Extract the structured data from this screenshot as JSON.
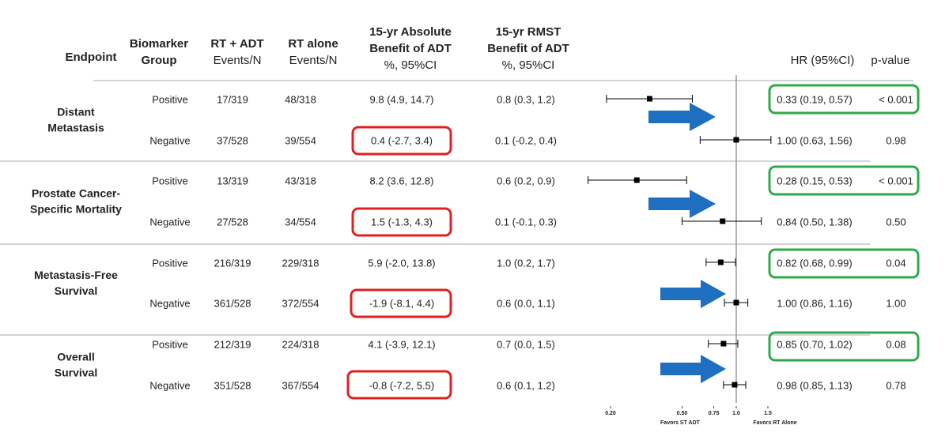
{
  "table": {
    "headers": {
      "endpoint": [
        "Endpoint"
      ],
      "biomarker": [
        "Biomarker",
        "Group"
      ],
      "rt_adt": [
        "RT + ADT",
        "Events/N"
      ],
      "rt_alone": [
        "RT alone",
        "Events/N"
      ],
      "absolute": [
        "15-yr Absolute",
        "Benefit of ADT",
        "%, 95%CI"
      ],
      "rmst": [
        "15-yr RMST",
        "Benefit of ADT",
        "%, 95%CI"
      ],
      "hr": [
        "HR (95%CI)"
      ],
      "p": [
        "p-value"
      ]
    },
    "groups": [
      [
        "Distant",
        "Metastasis"
      ],
      [
        "Prostate Cancer-",
        "Specific Mortality"
      ],
      [
        "Metastasis-Free",
        "Survival"
      ],
      [
        "Overall",
        "Survival"
      ]
    ],
    "rows": [
      [
        "Positive",
        "17/319",
        "48/318",
        "9.8 (4.9, 14.7)",
        "0.8 (0.3, 1.2)",
        "< 0.001"
      ],
      [
        "Negative",
        "37/528",
        "39/554",
        "0.4 (-2.7, 3.4)",
        "0.1 (-0.2, 0.4)",
        "0.98"
      ],
      [
        "Positive",
        "13/319",
        "43/318",
        "8.2 (3.6, 12.8)",
        "0.6 (0.2, 0.9)",
        "< 0.001"
      ],
      [
        "Negative",
        "27/528",
        "34/554",
        "1.5 (-1.3, 4.3)",
        "0.1 (-0.1, 0.3)",
        "0.50"
      ],
      [
        "Positive",
        "216/319",
        "229/318",
        "5.9 (-2.0, 13.8)",
        "1.0 (0.2, 1.7)",
        "0.04"
      ],
      [
        "Negative",
        "361/528",
        "372/554",
        "-1.9 (-8.1, 4.4)",
        "0.6 (0.0, 1.1)",
        "1.00"
      ],
      [
        "Positive",
        "212/319",
        "224/318",
        "4.1 (-3.9, 12.1)",
        "0.7 (0.0, 1.5)",
        "0.08"
      ],
      [
        "Negative",
        "351/528",
        "367/554",
        "-0.8 (-7.2, 5.5)",
        "0.6 (0.1, 1.2)",
        "0.78"
      ]
    ]
  },
  "chart_data": {
    "type": "forest",
    "values": [
      0.33,
      1.0,
      0.28,
      0.84,
      0.82,
      1.0,
      0.85,
      0.98
    ],
    "lower": [
      0.19,
      0.63,
      0.15,
      0.5,
      0.68,
      0.86,
      0.7,
      0.85
    ],
    "upper": [
      0.57,
      1.56,
      0.53,
      1.38,
      0.99,
      1.16,
      1.02,
      1.13
    ],
    "value_labels": [
      "0.33 (0.19, 0.57)",
      "1.00 (0.63, 1.56)",
      "0.28 (0.15, 0.53)",
      "0.84 (0.50, 1.38)",
      "0.82 (0.68, 0.99)",
      "1.00 (0.86, 1.16)",
      "0.85 (0.70, 1.02)",
      "0.98 (0.85, 1.13)"
    ],
    "xlim": [
      0.2,
      1.5
    ],
    "xticks": [
      {
        "value": 0.2,
        "label": "0.20"
      },
      {
        "value": 0.5,
        "label": "0.50"
      },
      0.75,
      {
        "value": 1,
        "label": "1.0"
      },
      1.5
    ],
    "log_x": true,
    "ref_line": 1,
    "xlabel_left": "Favors ST ADT",
    "xlabel_right": "Favors RT Alone",
    "color": "#000000"
  }
}
